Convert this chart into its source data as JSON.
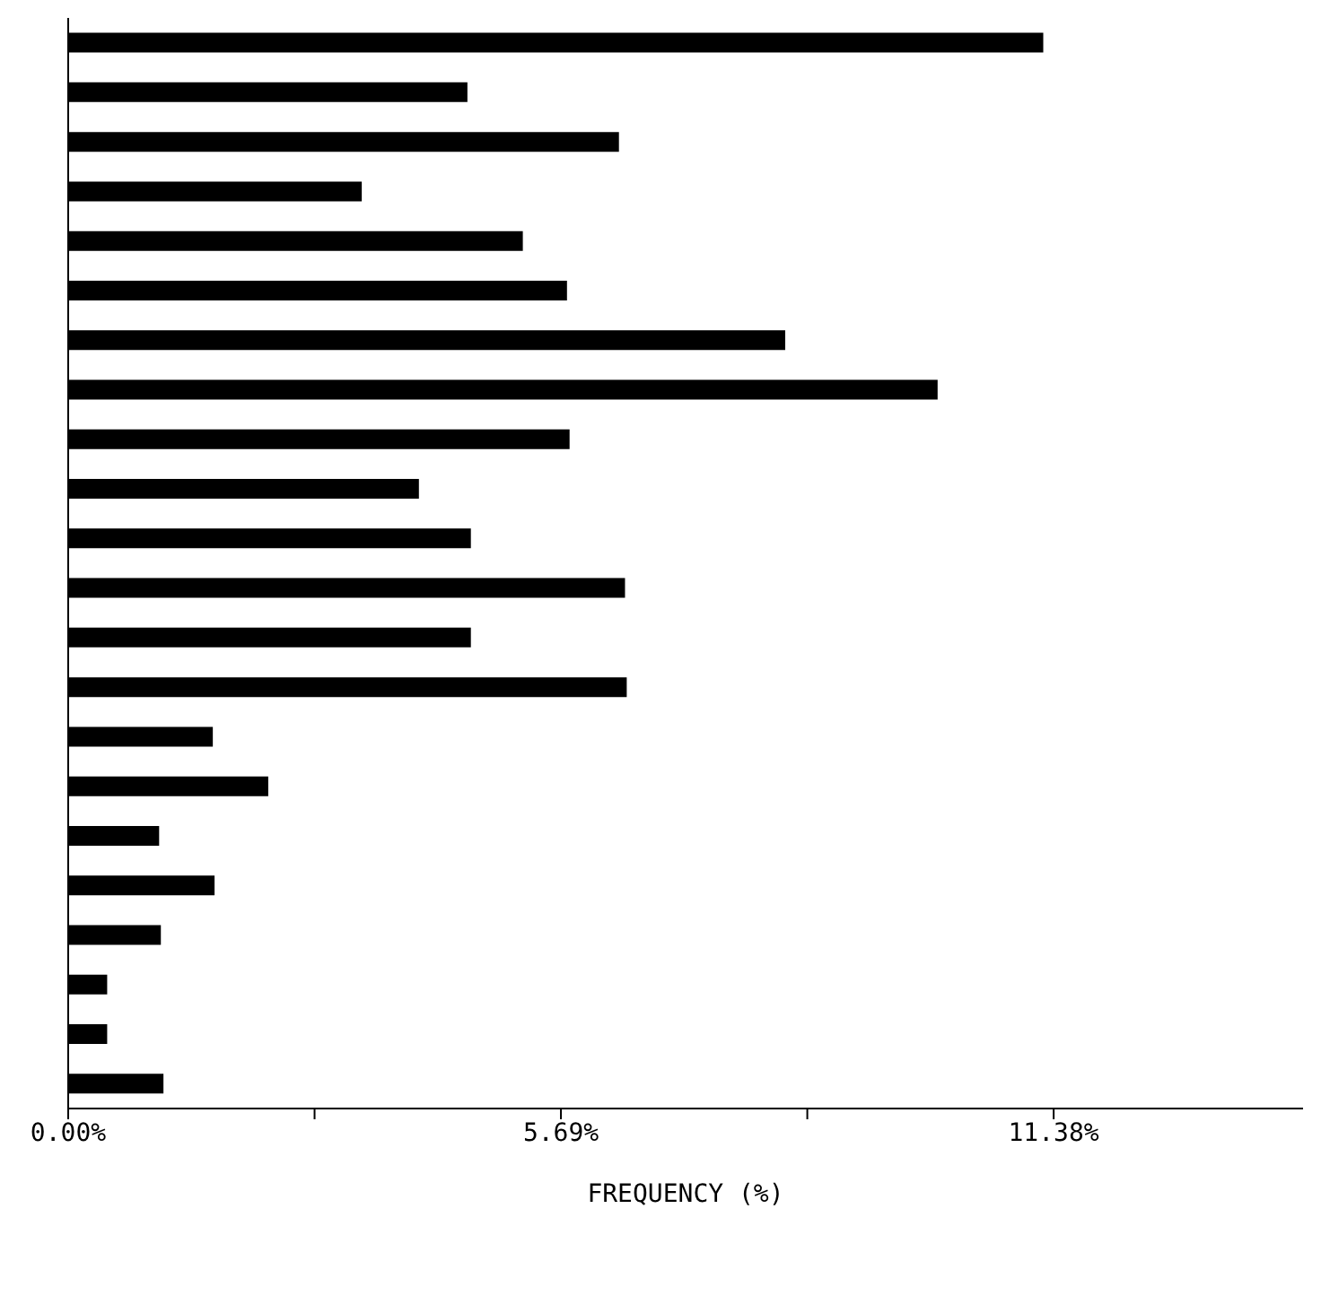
{
  "chart_data": {
    "type": "bar",
    "orientation": "horizontal",
    "xlabel": "FREQUENCY (%)",
    "categories": [
      null,
      null,
      null,
      null,
      null,
      null,
      null,
      null,
      null,
      null,
      null,
      null,
      null,
      null,
      null,
      null,
      null,
      null,
      null,
      null,
      null,
      null
    ],
    "values": [
      11.26,
      4.61,
      6.36,
      3.39,
      5.25,
      5.76,
      8.28,
      10.04,
      5.79,
      4.05,
      4.65,
      6.43,
      4.65,
      6.45,
      1.67,
      2.31,
      1.05,
      1.69,
      1.07,
      0.45,
      0.45,
      1.1
    ],
    "color": "#000000",
    "xlim": [
      0,
      14.26
    ],
    "xticks": [
      {
        "value": 0,
        "label": "0.00%"
      },
      {
        "value": 2.845,
        "label": null
      },
      {
        "value": 5.69,
        "label": "5.69%"
      },
      {
        "value": 8.535,
        "label": null
      },
      {
        "value": 11.38,
        "label": "11.38%"
      }
    ],
    "grid": false
  }
}
